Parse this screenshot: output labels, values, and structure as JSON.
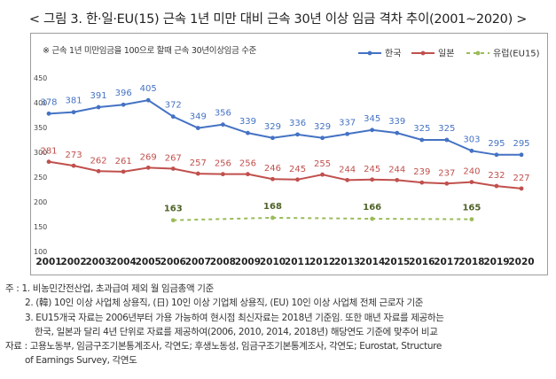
{
  "title": "< 그림 3. 한·일·EU(15) 근속 1년 미만 대비 근속 30년 이상 임금 격차 추이(2001~2020) >",
  "chart_data": {
    "type": "line",
    "subtitle": "※ 근속 1년 미만임금을 100으로 할때 근속 30년이상임금 수준",
    "x": [
      2001,
      2002,
      2003,
      2004,
      2005,
      2006,
      2007,
      2008,
      2009,
      2010,
      2011,
      2012,
      2013,
      2014,
      2015,
      2016,
      2017,
      2018,
      2019,
      2020
    ],
    "ylim": [
      100,
      450
    ],
    "yticks": [
      100,
      150,
      200,
      250,
      300,
      350,
      400,
      450
    ],
    "series": [
      {
        "name": "한국",
        "color": "#4472c4",
        "style": "solid",
        "values": [
          378,
          381,
          391,
          396,
          405,
          372,
          349,
          356,
          339,
          329,
          336,
          329,
          337,
          345,
          339,
          325,
          325,
          303,
          295,
          295
        ]
      },
      {
        "name": "일본",
        "color": "#c0504d",
        "style": "solid",
        "values": [
          281,
          273,
          262,
          261,
          269,
          267,
          257,
          256,
          256,
          246,
          245,
          255,
          244,
          245,
          244,
          239,
          237,
          240,
          232,
          227
        ]
      },
      {
        "name": "유럽(EU15)",
        "color": "#9bbb59",
        "style": "dashed",
        "x": [
          2006,
          2010,
          2014,
          2018
        ],
        "values": [
          163,
          168,
          166,
          165
        ]
      }
    ],
    "legend_position": "top-right"
  },
  "notes": [
    "주 : 1. 비농민간전산업, 초과급여 제외 월 임금총액 기준",
    "2. (韓) 10인 이상 사업체 상용직, (日) 10인 이상 기업체 상용직, (EU) 10인 이상 사업체 전체 근로자 기준",
    "3. EU15개국 자료는 2006년부터 가용 가능하여 현시점 최신자료는 2018년 기준임. 또한 매년 자료를 제공하는",
    "한국, 일본과 달리 4년 단위로 자료를 제공하여(2006, 2010, 2014, 2018년) 해당연도 기준에 맞추어 비교",
    "자료 : 고용노동부, 임금구조기본통계조사, 각연도; 후생노동성, 임금구조기본통계조사, 각연도; Eurostat, Structure",
    "of Earnings Survey, 각연도"
  ]
}
